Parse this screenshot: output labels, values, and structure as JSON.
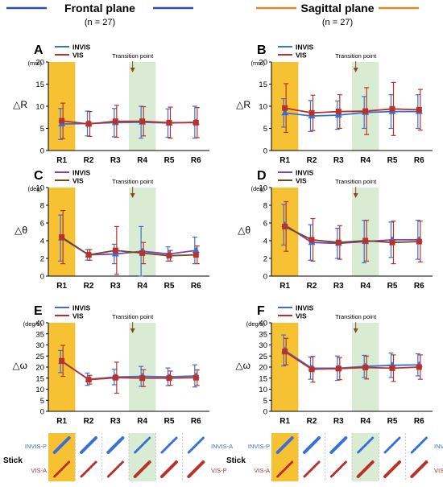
{
  "figure": {
    "frontal": {
      "title": "Frontal plane",
      "n": "(n = 27)",
      "color": "#2f4fa8"
    },
    "sagittal": {
      "title": "Sagittal plane",
      "n": "(n = 27)",
      "color": "#d98a2b"
    },
    "colors": {
      "invis": "#3a6fd8",
      "vis": "#b8322a",
      "invis_theta": "#7a3fc8",
      "vis_theta": "#6b4a1e",
      "r1_band": "#f6c233",
      "r4_band": "#d9ecd3"
    },
    "stick": {
      "row_label": "Stick",
      "invis_p": "INVIS-P",
      "invis_a": "INVIS-A",
      "vis_a": "VIS-A",
      "vis_p": "VIS-P",
      "pattern_solid": [
        false,
        true,
        true,
        false,
        false,
        false
      ],
      "invis_style": [
        "solid",
        "solid",
        "solid",
        "dotted",
        "dotted",
        "dotted"
      ],
      "vis_style": [
        "dotted",
        "dotted",
        "dotted",
        "solid",
        "solid",
        "solid"
      ]
    }
  },
  "chart_data": [
    {
      "panel": "A",
      "type": "line",
      "plane": "Frontal plane",
      "categories": [
        "R1",
        "R2",
        "R3",
        "R4",
        "R5",
        "R6"
      ],
      "unit": "(mm)",
      "ylabel": "△R",
      "ylim": [
        0,
        20
      ],
      "yticks": [
        0,
        5,
        10,
        15,
        20
      ],
      "annotation": "Transition point",
      "series": [
        {
          "name": "INVIS",
          "values": [
            6.0,
            6.1,
            6.3,
            6.4,
            6.2,
            6.4
          ],
          "err": [
            3.5,
            2.8,
            3.2,
            3.6,
            3.2,
            3.6
          ]
        },
        {
          "name": "VIS",
          "values": [
            6.7,
            6.0,
            6.6,
            6.6,
            6.3,
            6.3
          ],
          "err": [
            4.0,
            2.8,
            3.6,
            3.3,
            3.5,
            3.4
          ]
        }
      ]
    },
    {
      "panel": "B",
      "type": "line",
      "plane": "Sagittal plane",
      "categories": [
        "R1",
        "R2",
        "R3",
        "R4",
        "R5",
        "R6"
      ],
      "unit": "(mm)",
      "ylabel": "△R",
      "ylim": [
        0,
        20
      ],
      "yticks": [
        0,
        5,
        10,
        15,
        20
      ],
      "annotation": "Transition point",
      "series": [
        {
          "name": "INVIS",
          "values": [
            8.5,
            7.8,
            8.0,
            8.6,
            8.8,
            8.8
          ],
          "err": [
            3.2,
            3.5,
            3.2,
            3.6,
            3.8,
            3.8
          ]
        },
        {
          "name": "VIS",
          "values": [
            9.6,
            8.5,
            8.8,
            8.9,
            9.4,
            9.2
          ],
          "err": [
            5.5,
            4.0,
            3.8,
            5.3,
            6.0,
            4.6
          ]
        }
      ]
    },
    {
      "panel": "C",
      "type": "line",
      "plane": "Frontal plane",
      "categories": [
        "R1",
        "R2",
        "R3",
        "R4",
        "R5",
        "R6"
      ],
      "unit": "(deg)",
      "ylabel": "△θ",
      "ylim": [
        0,
        10
      ],
      "yticks": [
        0,
        2,
        4,
        6,
        8,
        10
      ],
      "annotation": "Transition point",
      "series": [
        {
          "name": "INVIS",
          "values": [
            4.3,
            2.4,
            2.5,
            2.8,
            2.5,
            2.9
          ],
          "err": [
            2.6,
            0.6,
            1.1,
            2.8,
            0.8,
            1.5
          ]
        },
        {
          "name": "VIS",
          "values": [
            4.4,
            2.4,
            2.9,
            2.6,
            2.3,
            2.4
          ],
          "err": [
            3.0,
            0.6,
            2.7,
            1.2,
            0.6,
            1.0
          ]
        }
      ]
    },
    {
      "panel": "D",
      "type": "line",
      "plane": "Sagittal plane",
      "categories": [
        "R1",
        "R2",
        "R3",
        "R4",
        "R5",
        "R6"
      ],
      "unit": "(deg)",
      "ylabel": "△θ",
      "ylim": [
        0,
        10
      ],
      "yticks": [
        0,
        2,
        4,
        6,
        8,
        10
      ],
      "annotation": "Transition point",
      "series": [
        {
          "name": "INVIS",
          "values": [
            5.8,
            3.8,
            3.7,
            3.9,
            4.1,
            4.1
          ],
          "err": [
            2.3,
            2.0,
            1.7,
            2.4,
            2.0,
            2.2
          ]
        },
        {
          "name": "VIS",
          "values": [
            5.6,
            4.1,
            3.8,
            4.0,
            3.8,
            3.9
          ],
          "err": [
            2.8,
            2.4,
            1.9,
            2.3,
            2.4,
            2.3
          ]
        }
      ]
    },
    {
      "panel": "E",
      "type": "line",
      "plane": "Frontal plane",
      "categories": [
        "R1",
        "R2",
        "R3",
        "R4",
        "R5",
        "R6"
      ],
      "unit": "(deg/s)",
      "ylabel": "△ω",
      "ylim": [
        0,
        40
      ],
      "yticks": [
        0,
        5,
        10,
        15,
        20,
        25,
        30,
        35,
        40
      ],
      "annotation": "Transition point",
      "series": [
        {
          "name": "INVIS",
          "values": [
            22.5,
            14.5,
            15.5,
            15.8,
            15.6,
            16.0
          ],
          "err": [
            5.0,
            2.8,
            3.5,
            4.5,
            4.0,
            5.0
          ]
        },
        {
          "name": "VIS",
          "values": [
            22.8,
            14.3,
            15.2,
            15.0,
            15.0,
            15.2
          ],
          "err": [
            7.0,
            2.0,
            7.0,
            3.8,
            3.2,
            3.5
          ]
        }
      ]
    },
    {
      "panel": "F",
      "type": "line",
      "plane": "Sagittal plane",
      "categories": [
        "R1",
        "R2",
        "R3",
        "R4",
        "R5",
        "R6"
      ],
      "unit": "(deg/s)",
      "ylabel": "△ω",
      "ylim": [
        0,
        40
      ],
      "yticks": [
        0,
        5,
        10,
        15,
        20,
        25,
        30,
        35,
        40
      ],
      "annotation": "Transition point",
      "series": [
        {
          "name": "INVIS",
          "values": [
            27.5,
            19.5,
            19.5,
            20.3,
            20.8,
            21.0
          ],
          "err": [
            7.0,
            5.0,
            5.5,
            5.0,
            5.5,
            5.0
          ]
        },
        {
          "name": "VIS",
          "values": [
            27.0,
            19.0,
            19.3,
            19.8,
            19.5,
            20.0
          ],
          "err": [
            6.0,
            5.8,
            5.0,
            5.2,
            6.0,
            5.5
          ]
        }
      ]
    }
  ]
}
